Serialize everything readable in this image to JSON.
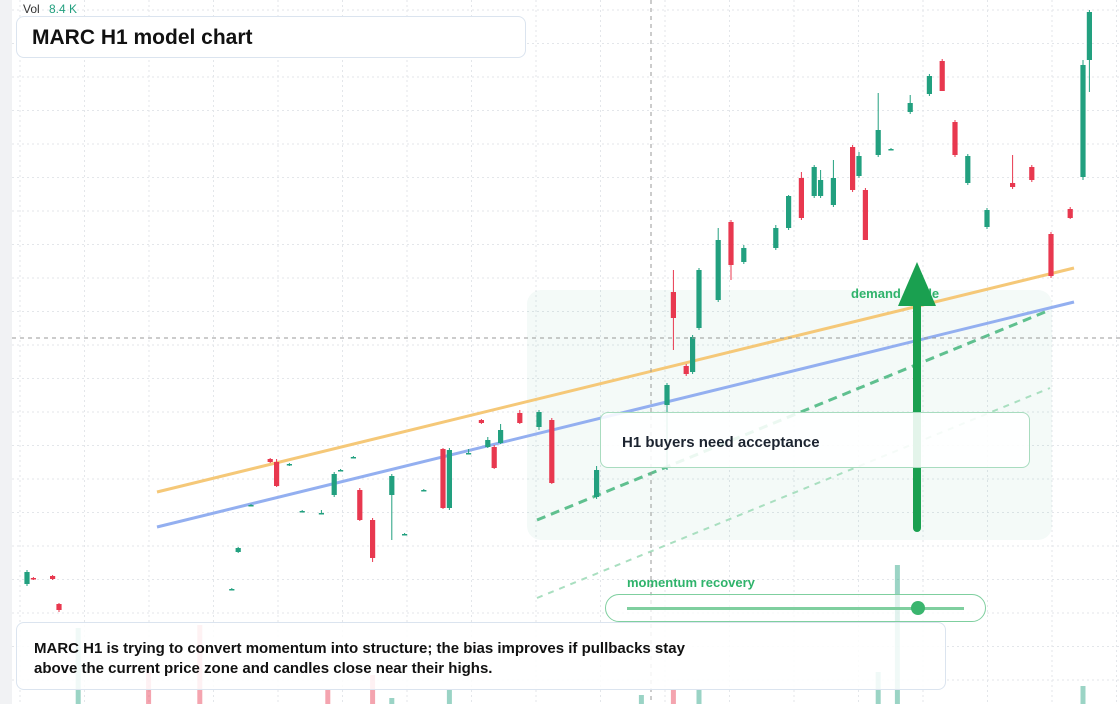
{
  "header": {
    "vol_label": "Vol",
    "vol_value": "8.4 K"
  },
  "title": "MARC H1 model chart",
  "chart_data": {
    "type": "candlestick",
    "up_color": "#22a07f",
    "down_color": "#e8384f",
    "xlim": [
      0,
      166
    ],
    "ylim": [
      0,
      70.4
    ],
    "grid": true,
    "x": [
      0,
      1,
      4,
      5,
      32,
      33,
      35,
      38,
      39,
      41,
      43,
      46,
      48,
      49,
      51,
      52,
      54,
      57,
      59,
      62,
      65,
      66,
      69,
      71,
      72,
      73,
      74,
      77,
      80,
      82,
      89,
      100,
      101,
      103,
      104,
      105,
      108,
      110,
      112,
      117,
      119,
      121,
      123,
      124,
      126,
      129,
      130,
      131,
      133,
      135,
      138,
      141,
      143,
      145,
      147,
      150,
      154,
      157,
      160,
      163,
      165,
      166
    ],
    "open": [
      12.0,
      12.6,
      12.8,
      10.0,
      11.5,
      15.2,
      19.9,
      24.5,
      24.2,
      24.0,
      19.3,
      19.1,
      20.9,
      23.4,
      24.7,
      21.4,
      18.4,
      20.9,
      17.0,
      21.4,
      25.5,
      19.6,
      25.1,
      28.4,
      25.7,
      25.7,
      26.1,
      29.1,
      27.7,
      28.4,
      20.7,
      29.9,
      41.2,
      33.8,
      33.2,
      37.6,
      40.4,
      48.2,
      44.2,
      45.6,
      47.6,
      52.6,
      50.8,
      50.8,
      49.9,
      55.7,
      52.8,
      51.4,
      54.9,
      55.5,
      59.2,
      61.0,
      64.3,
      58.2,
      52.1,
      47.7,
      52.1,
      53.7,
      47.0,
      49.5,
      52.7,
      64.4
    ],
    "high": [
      13.4,
      12.7,
      12.9,
      10.1,
      11.6,
      15.7,
      20.0,
      24.6,
      24.5,
      24.1,
      19.4,
      19.4,
      23.2,
      23.5,
      24.8,
      21.6,
      18.6,
      23.0,
      17.1,
      21.5,
      25.6,
      25.6,
      25.5,
      28.5,
      26.7,
      25.9,
      28.0,
      29.4,
      29.4,
      28.6,
      23.8,
      32.1,
      43.4,
      34.0,
      36.9,
      43.6,
      47.6,
      48.4,
      45.9,
      47.9,
      50.9,
      53.2,
      53.9,
      53.4,
      54.4,
      55.9,
      55.2,
      51.6,
      61.1,
      55.6,
      60.9,
      63.0,
      64.5,
      58.4,
      55.0,
      49.6,
      54.9,
      53.9,
      47.2,
      49.7,
      64.4,
      69.4
    ],
    "low": [
      11.8,
      12.4,
      12.4,
      9.2,
      11.4,
      15.1,
      19.8,
      24.1,
      21.7,
      23.8,
      19.2,
      19.0,
      20.7,
      23.3,
      24.6,
      18.3,
      14.2,
      16.4,
      16.9,
      21.3,
      19.5,
      19.4,
      25.0,
      28.0,
      25.6,
      23.5,
      26.0,
      28.0,
      27.4,
      22.0,
      20.5,
      23.4,
      35.4,
      32.8,
      33.0,
      37.4,
      40.2,
      42.4,
      44.0,
      45.4,
      47.4,
      48.4,
      50.6,
      50.6,
      49.7,
      51.2,
      52.6,
      46.4,
      54.7,
      55.4,
      59.0,
      60.8,
      61.3,
      54.7,
      51.9,
      47.5,
      51.5,
      52.2,
      42.6,
      48.5,
      52.4,
      61.2
    ],
    "close": [
      13.2,
      12.5,
      12.5,
      9.4,
      11.5,
      15.6,
      19.9,
      24.2,
      21.8,
      24.0,
      19.3,
      19.1,
      23.0,
      23.4,
      24.7,
      18.4,
      14.6,
      22.8,
      17.0,
      21.4,
      19.6,
      25.4,
      25.1,
      28.1,
      26.4,
      23.6,
      27.4,
      28.1,
      29.2,
      22.1,
      23.4,
      31.9,
      38.6,
      33.0,
      36.7,
      43.4,
      46.4,
      43.9,
      45.6,
      47.6,
      50.8,
      48.6,
      53.7,
      52.4,
      52.6,
      51.4,
      54.8,
      46.4,
      57.4,
      55.5,
      60.1,
      62.8,
      61.3,
      54.9,
      54.8,
      49.4,
      51.7,
      52.4,
      42.8,
      48.6,
      63.9,
      69.2
    ],
    "volume": {
      "x": [
        8,
        19,
        27,
        47,
        54,
        57,
        66,
        96,
        101,
        105,
        133,
        136,
        165
      ],
      "values": [
        7.6,
        3.2,
        7.9,
        1.4,
        2.9,
        0.6,
        1.4,
        0.9,
        1.4,
        1.4,
        3.2,
        13.9,
        1.8
      ],
      "colors": [
        "#22a07f",
        "#e8384f",
        "#e8384f",
        "#e8384f",
        "#e8384f",
        "#22a07f",
        "#22a07f",
        "#22a07f",
        "#e8384f",
        "#22a07f",
        "#22a07f",
        "#22a07f",
        "#22a07f"
      ],
      "ylim": [
        0,
        70.4
      ]
    }
  },
  "annotations": {
    "zone_label": "demand guide",
    "callout": "H1 buyers need acceptance",
    "slider_label": "momentum recovery",
    "note": "MARC H1 is trying to convert momentum into structure; the bias improves if pullbacks stay above the current price zone and candles close near their highs."
  }
}
